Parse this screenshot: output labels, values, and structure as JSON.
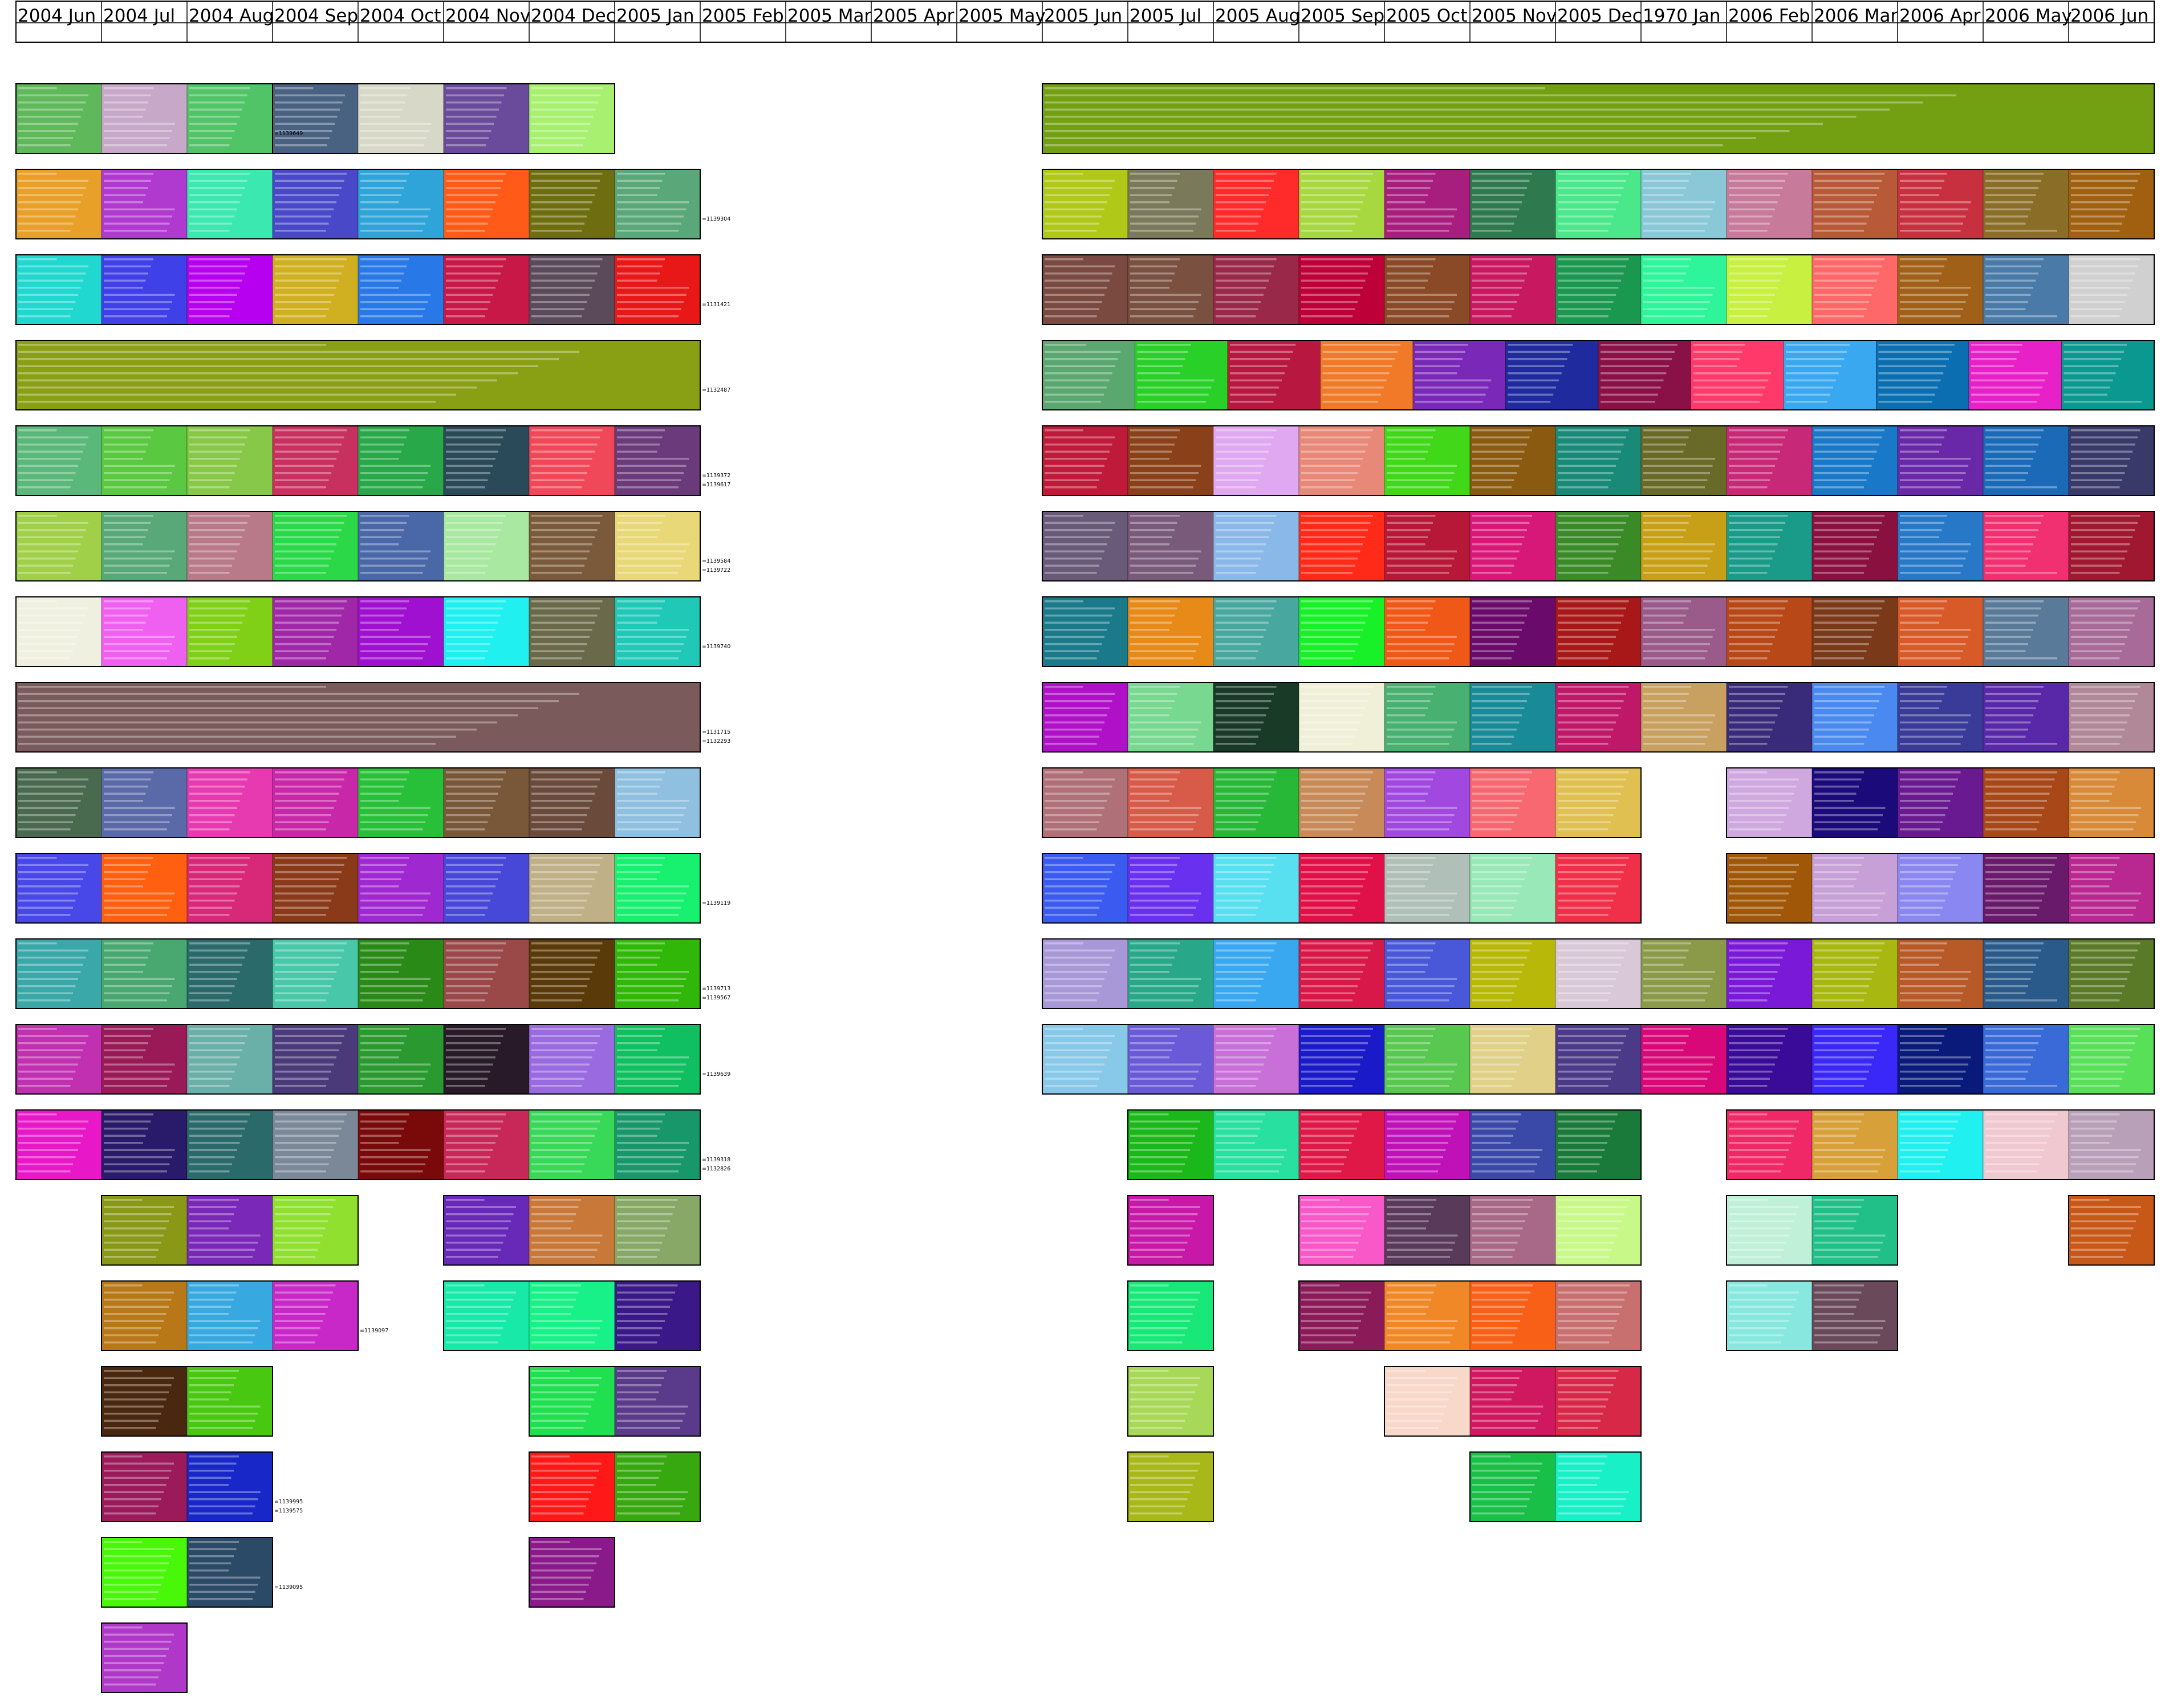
{
  "chart_data": {
    "type": "heatmap",
    "title": "",
    "xlabel": "",
    "ylabel": "",
    "grid": true,
    "legend": "none",
    "x_categories": [
      "2004 Jun",
      "2004 Jul",
      "2004 Aug",
      "2004 Sep",
      "2004 Oct",
      "2004 Nov",
      "2004 Dec",
      "2005 Jan",
      "2005 Feb",
      "2005 Mar",
      "2005 Apr",
      "2005 May",
      "2005 Jun",
      "2005 Jul",
      "2005 Aug",
      "2005 Sep",
      "2005 Oct",
      "2005 Nov",
      "2005 Dec",
      "1970 Jan",
      "2006 Feb",
      "2006 Mar",
      "2006 Apr",
      "2006 May",
      "2006 Jun"
    ],
    "rows": [
      {
        "bugs": [
          "1139649",
          "",
          "",
          "",
          "",
          "",
          "",
          ""
        ],
        "cells": [
          {
            "col": 0,
            "span": 3,
            "colors": [
              "#5fb85a",
              "#c8a8c8",
              "#52c468"
            ]
          },
          {
            "col": 3,
            "span": 4,
            "colors": [
              "#4a6282",
              "#d8d8c8",
              "#6a4a9a",
              "#a8f070"
            ]
          },
          {
            "col": 12,
            "span": 13,
            "colors": [
              "#72a012"
            ]
          }
        ]
      },
      {
        "bugs": [
          "1139304"
        ],
        "cells": [
          {
            "col": 0,
            "span": 8,
            "colors": [
              "#e8a028",
              "#b03ad0",
              "#3ae8b0",
              "#4848c8",
              "#2ea4d8",
              "#ff5a18",
              "#6e6e10",
              "#5aa87a"
            ]
          },
          {
            "col": 12,
            "span": 13,
            "colors": [
              "#b0c818",
              "#7a7a5a",
              "#ff2a2a",
              "#a8d840",
              "#a81e7e",
              "#2e7a4e",
              "#4ae88a",
              "#8ac8d8",
              "#c87a9a",
              "#b85a38",
              "#c83040",
              "#8a6e28",
              "#a06010"
            ]
          }
        ]
      },
      {
        "bugs": [
          "1131421"
        ],
        "cells": [
          {
            "col": 0,
            "span": 8,
            "colors": [
              "#20d8d0",
              "#4040e8",
              "#b800f0",
              "#d0b020",
              "#2878e8",
              "#c81848",
              "#5a4a5a",
              "#e81818"
            ]
          },
          {
            "col": 12,
            "span": 13,
            "colors": [
              "#7a4a40",
              "#7a5040",
              "#9a2848",
              "#be0038",
              "#8a4a28",
              "#c81860",
              "#1a9850",
              "#2ef59a",
              "#c8f040",
              "#ff6868",
              "#a06018",
              "#4a7aa8",
              "#d0d0d0"
            ]
          }
        ]
      },
      {
        "bugs": [
          "1132487",
          "",
          "",
          "",
          "",
          "",
          "",
          ""
        ],
        "cells": [
          {
            "col": 0,
            "span": 8,
            "colors": [
              "#8aa014"
            ]
          },
          {
            "col": 12,
            "span": 13,
            "colors": [
              "#5aa870",
              "#28d028",
              "#b81840",
              "#f07a28",
              "#7a28b8",
              "#1e2a9e",
              "#8a1048",
              "#ff3a6a",
              "#3aa8f0",
              "#0a6eb0",
              "#e820c8",
              "#0a9890"
            ]
          }
        ]
      },
      {
        "bugs": [
          "1139372",
          "1139617"
        ],
        "cells": [
          {
            "col": 0,
            "span": 8,
            "colors": [
              "#5ab87a",
              "#5ac840",
              "#88c848",
              "#c83060",
              "#28a848",
              "#2a4a5a",
              "#f04858",
              "#6a3a7a"
            ]
          },
          {
            "col": 12,
            "span": 13,
            "colors": [
              "#c01a3a",
              "#8a4018",
              "#e0a8f0",
              "#e88878",
              "#40d818",
              "#8a5a10",
              "#1a8a78",
              "#6a6a28",
              "#c82878",
              "#1a78c8",
              "#6828a8",
              "#1a6ab8",
              "#3a3a6a"
            ]
          }
        ]
      },
      {
        "bugs": [
          "1139584",
          "1139722"
        ],
        "cells": [
          {
            "col": 0,
            "span": 8,
            "colors": [
              "#a0d048",
              "#58a878",
              "#b87a88",
              "#2ad848",
              "#4a68a8",
              "#a8e8a0",
              "#7a5a3a",
              "#e8d878"
            ]
          },
          {
            "col": 12,
            "span": 13,
            "colors": [
              "#6a5a7a",
              "#7a5a7a",
              "#8ab8e8",
              "#ff2a18",
              "#b81838",
              "#d81878",
              "#3a8a28",
              "#c8a018",
              "#1a9a88",
              "#8a1040",
              "#2878c8",
              "#f03070",
              "#a01830"
            ]
          }
        ]
      },
      {
        "bugs": [
          "1139740"
        ],
        "cells": [
          {
            "col": 0,
            "span": 8,
            "colors": [
              "#f0f0e0",
              "#f060f0",
              "#80d018",
              "#a028a8",
              "#a010d0",
              "#20f0f0",
              "#6a6a4a",
              "#20c8b8"
            ]
          },
          {
            "col": 12,
            "span": 13,
            "colors": [
              "#1a7a8a",
              "#e88a18",
              "#48a8a0",
              "#18f028",
              "#f05818",
              "#6a0a6a",
              "#a81818",
              "#9a5a8a",
              "#b84818",
              "#7a3a1a",
              "#d85a28",
              "#5a7a9a",
              "#a86a98"
            ]
          }
        ]
      },
      {
        "bugs": [
          "1131715",
          "1132293"
        ],
        "cells": [
          {
            "col": 0,
            "span": 8,
            "colors": [
              "#7a5a5a"
            ]
          },
          {
            "col": 12,
            "span": 13,
            "colors": [
              "#b010c8",
              "#78d890",
              "#1a3a28",
              "#f0f0d8",
              "#48b070",
              "#188a98",
              "#c01868",
              "#c8a060",
              "#3a2a7a",
              "#4a8af0",
              "#3a3a98",
              "#5828a8",
              "#b08898"
            ]
          }
        ]
      },
      {
        "bugs": [
          "",
          "",
          "",
          "",
          "",
          "",
          "",
          ""
        ],
        "cells": [
          {
            "col": 0,
            "span": 8,
            "colors": [
              "#4a6a50",
              "#5a6aa8",
              "#e83ab0",
              "#c828a8",
              "#28c038",
              "#785838",
              "#6a4a3a",
              "#90c0e0"
            ]
          },
          {
            "col": 12,
            "span": 7,
            "colors": [
              "#b07078",
              "#d85a48",
              "#28b838",
              "#c88a58",
              "#a048e0",
              "#f86870",
              "#e0c050"
            ]
          },
          {
            "col": 20,
            "span": 5,
            "colors": [
              "#d0a8e0",
              "#1a0a7a",
              "#6a1a90",
              "#a84818",
              "#d88a38"
            ]
          }
        ]
      },
      {
        "bugs": [
          "1139119"
        ],
        "cells": [
          {
            "col": 0,
            "span": 8,
            "colors": [
              "#4848e8",
              "#ff6010",
              "#d82878",
              "#8a3a18",
              "#a028d0",
              "#4848d8",
              "#c0b088",
              "#18f070"
            ]
          },
          {
            "col": 12,
            "span": 7,
            "colors": [
              "#3a5af0",
              "#6a30f0",
              "#58e0f0",
              "#e01048",
              "#b0c0b8",
              "#98e8b8",
              "#f03048"
            ]
          },
          {
            "col": 20,
            "span": 5,
            "colors": [
              "#a05808",
              "#c8a0d8",
              "#8a88f0",
              "#6a1a6a",
              "#b82890"
            ]
          }
        ]
      },
      {
        "bugs": [
          "1139713",
          "1139567"
        ],
        "cells": [
          {
            "col": 0,
            "span": 8,
            "colors": [
              "#3aa8a8",
              "#48a870",
              "#2a6a6a",
              "#48c8a8",
              "#2a8a18",
              "#9a4848",
              "#5a3a08",
              "#30b808"
            ]
          },
          {
            "col": 12,
            "span": 13,
            "colors": [
              "#a898d8",
              "#28a888",
              "#3aa8f0",
              "#d81848",
              "#4858d8",
              "#b8b808",
              "#d8c8d8",
              "#8a9a48",
              "#7a1ad8",
              "#a8b810",
              "#b85a28",
              "#2a5a8a",
              "#5a7a28"
            ]
          }
        ]
      },
      {
        "bugs": [
          "1139639"
        ],
        "cells": [
          {
            "col": 0,
            "span": 8,
            "colors": [
              "#c030b0",
              "#9a1a58",
              "#6ab0a8",
              "#4a3a7a",
              "#2a9a30",
              "#281a28",
              "#9a6ae0",
              "#10c060"
            ]
          },
          {
            "col": 12,
            "span": 13,
            "colors": [
              "#88c8e8",
              "#6a5ad8",
              "#c870d8",
              "#1a1ac8",
              "#58c850",
              "#e0d088",
              "#4a3a88",
              "#d80878",
              "#3a0a98",
              "#3a28f8",
              "#0a1a7a",
              "#3a6ad8",
              "#58e058"
            ]
          }
        ]
      },
      {
        "bugs": [
          "1139318",
          "1132826"
        ],
        "cells": [
          {
            "col": 0,
            "span": 8,
            "colors": [
              "#e818c8",
              "#2a1a6a",
              "#2a6a6a",
              "#7a8898",
              "#7a0a0a",
              "#c82858",
              "#38d858",
              "#18986a"
            ]
          },
          {
            "col": 13,
            "span": 6,
            "colors": [
              "#1ab818",
              "#28e0a0",
              "#e01848",
              "#c010b8",
              "#3a48a8",
              "#1a7a3a"
            ]
          },
          {
            "col": 20,
            "span": 5,
            "colors": [
              "#f02868",
              "#d8a038",
              "#20f0f0",
              "#f0c8d0",
              "#b8a0b8"
            ]
          }
        ]
      },
      {
        "bugs": [
          "",
          "",
          "",
          "",
          "",
          "",
          "",
          ""
        ],
        "cells": [
          {
            "col": 1,
            "span": 3,
            "colors": [
              "#8a9818",
              "#7a28b8",
              "#90e030"
            ]
          },
          {
            "col": 5,
            "span": 3,
            "colors": [
              "#6828b8",
              "#c87838",
              "#88a868"
            ]
          },
          {
            "col": 13,
            "span": 1,
            "colors": [
              "#c818a8"
            ]
          },
          {
            "col": 15,
            "span": 4,
            "colors": [
              "#f858c8",
              "#5a3a5a",
              "#a86888",
              "#c8f888"
            ]
          },
          {
            "col": 20,
            "span": 2,
            "colors": [
              "#c0f0d8",
              "#20c088"
            ]
          },
          {
            "col": 24,
            "span": 1,
            "colors": [
              "#c85818"
            ]
          }
        ]
      },
      {
        "bugs": [
          "1139097"
        ],
        "cells": [
          {
            "col": 1,
            "span": 3,
            "colors": [
              "#b87818",
              "#38a8e0",
              "#c828c8"
            ]
          },
          {
            "col": 5,
            "span": 3,
            "colors": [
              "#18e8a8",
              "#18f088",
              "#3a1888"
            ]
          },
          {
            "col": 13,
            "span": 1,
            "colors": [
              "#18e878"
            ]
          },
          {
            "col": 15,
            "span": 4,
            "colors": [
              "#8a1a58",
              "#f08828",
              "#f86018",
              "#c87070"
            ]
          },
          {
            "col": 20,
            "span": 2,
            "colors": [
              "#88e8e0",
              "#6a4a5a"
            ]
          }
        ]
      },
      {
        "bugs": [
          "",
          "",
          "",
          "",
          "",
          "",
          "",
          ""
        ],
        "cells": [
          {
            "col": 1,
            "span": 2,
            "colors": [
              "#4a2810",
              "#48c810"
            ]
          },
          {
            "col": 6,
            "span": 2,
            "colors": [
              "#20e050",
              "#5a3a8a"
            ]
          },
          {
            "col": 13,
            "span": 1,
            "colors": [
              "#a8d858"
            ]
          },
          {
            "col": 16,
            "span": 3,
            "colors": [
              "#f8d8c8",
              "#d01860",
              "#d82848"
            ]
          }
        ]
      },
      {
        "bugs": [
          "1139995",
          "1139575"
        ],
        "cells": [
          {
            "col": 1,
            "span": 2,
            "colors": [
              "#9a1a5a",
              "#1828c8"
            ]
          },
          {
            "col": 6,
            "span": 2,
            "colors": [
              "#ff1818",
              "#38a810"
            ]
          },
          {
            "col": 13,
            "span": 1,
            "colors": [
              "#a8b818"
            ]
          },
          {
            "col": 17,
            "span": 2,
            "colors": [
              "#18c048",
              "#18f0c8"
            ]
          }
        ]
      },
      {
        "bugs": [
          "1139095"
        ],
        "cells": [
          {
            "col": 1,
            "span": 2,
            "colors": [
              "#48f808",
              "#2a4a68"
            ]
          },
          {
            "col": 6,
            "span": 1,
            "colors": [
              "#8a1a8a"
            ]
          }
        ]
      },
      {
        "bugs": [
          ""
        ],
        "cells": [
          {
            "col": 1,
            "span": 1,
            "colors": [
              "#b038c8"
            ]
          }
        ]
      }
    ],
    "url_snippet": "http://pto:1080/webpts?eptsdetail=yes&ErrorType=1&ErrorID="
  }
}
